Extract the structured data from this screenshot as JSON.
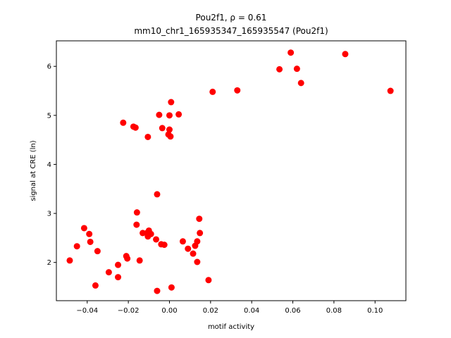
{
  "chart_data": {
    "type": "scatter",
    "title_line1": "Pou2f1, ρ = 0.61",
    "title_line2": "mm10_chr1_165935347_165935547 (Pou2f1)",
    "xlabel": "motif activity",
    "ylabel": "signal at CRE (ln)",
    "xlim": [
      -0.055,
      0.115
    ],
    "ylim": [
      1.22,
      6.52
    ],
    "xticks": [
      -0.04,
      -0.02,
      0.0,
      0.02,
      0.04,
      0.06,
      0.08,
      0.1
    ],
    "xtick_labels": [
      "−0.04",
      "−0.02",
      "0.00",
      "0.02",
      "0.04",
      "0.06",
      "0.08",
      "0.10"
    ],
    "yticks": [
      2,
      3,
      4,
      5,
      6
    ],
    "ytick_labels": [
      "2",
      "3",
      "4",
      "5",
      "6"
    ],
    "marker_color": "#ff0000",
    "grid": false,
    "points": [
      {
        "x": -0.0485,
        "y": 2.04
      },
      {
        "x": -0.045,
        "y": 2.33
      },
      {
        "x": -0.0415,
        "y": 2.7
      },
      {
        "x": -0.039,
        "y": 2.58
      },
      {
        "x": -0.0385,
        "y": 2.42
      },
      {
        "x": -0.036,
        "y": 1.53
      },
      {
        "x": -0.035,
        "y": 2.23
      },
      {
        "x": -0.0295,
        "y": 1.8
      },
      {
        "x": -0.025,
        "y": 1.7
      },
      {
        "x": -0.025,
        "y": 1.95
      },
      {
        "x": -0.0225,
        "y": 4.85
      },
      {
        "x": -0.021,
        "y": 2.13
      },
      {
        "x": -0.0205,
        "y": 2.08
      },
      {
        "x": -0.0175,
        "y": 4.77
      },
      {
        "x": -0.0165,
        "y": 4.75
      },
      {
        "x": -0.016,
        "y": 2.77
      },
      {
        "x": -0.0158,
        "y": 3.02
      },
      {
        "x": -0.0145,
        "y": 2.04
      },
      {
        "x": -0.013,
        "y": 2.6
      },
      {
        "x": -0.011,
        "y": 2.6
      },
      {
        "x": -0.0105,
        "y": 4.56
      },
      {
        "x": -0.0105,
        "y": 2.53
      },
      {
        "x": -0.01,
        "y": 2.65
      },
      {
        "x": -0.009,
        "y": 2.58
      },
      {
        "x": -0.0065,
        "y": 2.47
      },
      {
        "x": -0.006,
        "y": 3.39
      },
      {
        "x": -0.006,
        "y": 1.42
      },
      {
        "x": -0.005,
        "y": 5.01
      },
      {
        "x": -0.004,
        "y": 2.37
      },
      {
        "x": -0.0035,
        "y": 4.74
      },
      {
        "x": -0.0025,
        "y": 2.36
      },
      {
        "x": -0.0005,
        "y": 4.61
      },
      {
        "x": 0.0,
        "y": 5.0
      },
      {
        "x": 0.0,
        "y": 4.71
      },
      {
        "x": 0.0005,
        "y": 4.57
      },
      {
        "x": 0.0008,
        "y": 5.27
      },
      {
        "x": 0.001,
        "y": 1.49
      },
      {
        "x": 0.0045,
        "y": 5.02
      },
      {
        "x": 0.0065,
        "y": 2.43
      },
      {
        "x": 0.009,
        "y": 2.28
      },
      {
        "x": 0.0115,
        "y": 2.18
      },
      {
        "x": 0.0125,
        "y": 2.34
      },
      {
        "x": 0.0135,
        "y": 2.43
      },
      {
        "x": 0.0135,
        "y": 2.01
      },
      {
        "x": 0.0145,
        "y": 2.89
      },
      {
        "x": 0.0148,
        "y": 2.6
      },
      {
        "x": 0.019,
        "y": 1.64
      },
      {
        "x": 0.021,
        "y": 5.48
      },
      {
        "x": 0.033,
        "y": 5.51
      },
      {
        "x": 0.0535,
        "y": 5.94
      },
      {
        "x": 0.059,
        "y": 6.28
      },
      {
        "x": 0.062,
        "y": 5.95
      },
      {
        "x": 0.064,
        "y": 5.66
      },
      {
        "x": 0.0855,
        "y": 6.25
      },
      {
        "x": 0.1075,
        "y": 5.5
      }
    ]
  }
}
